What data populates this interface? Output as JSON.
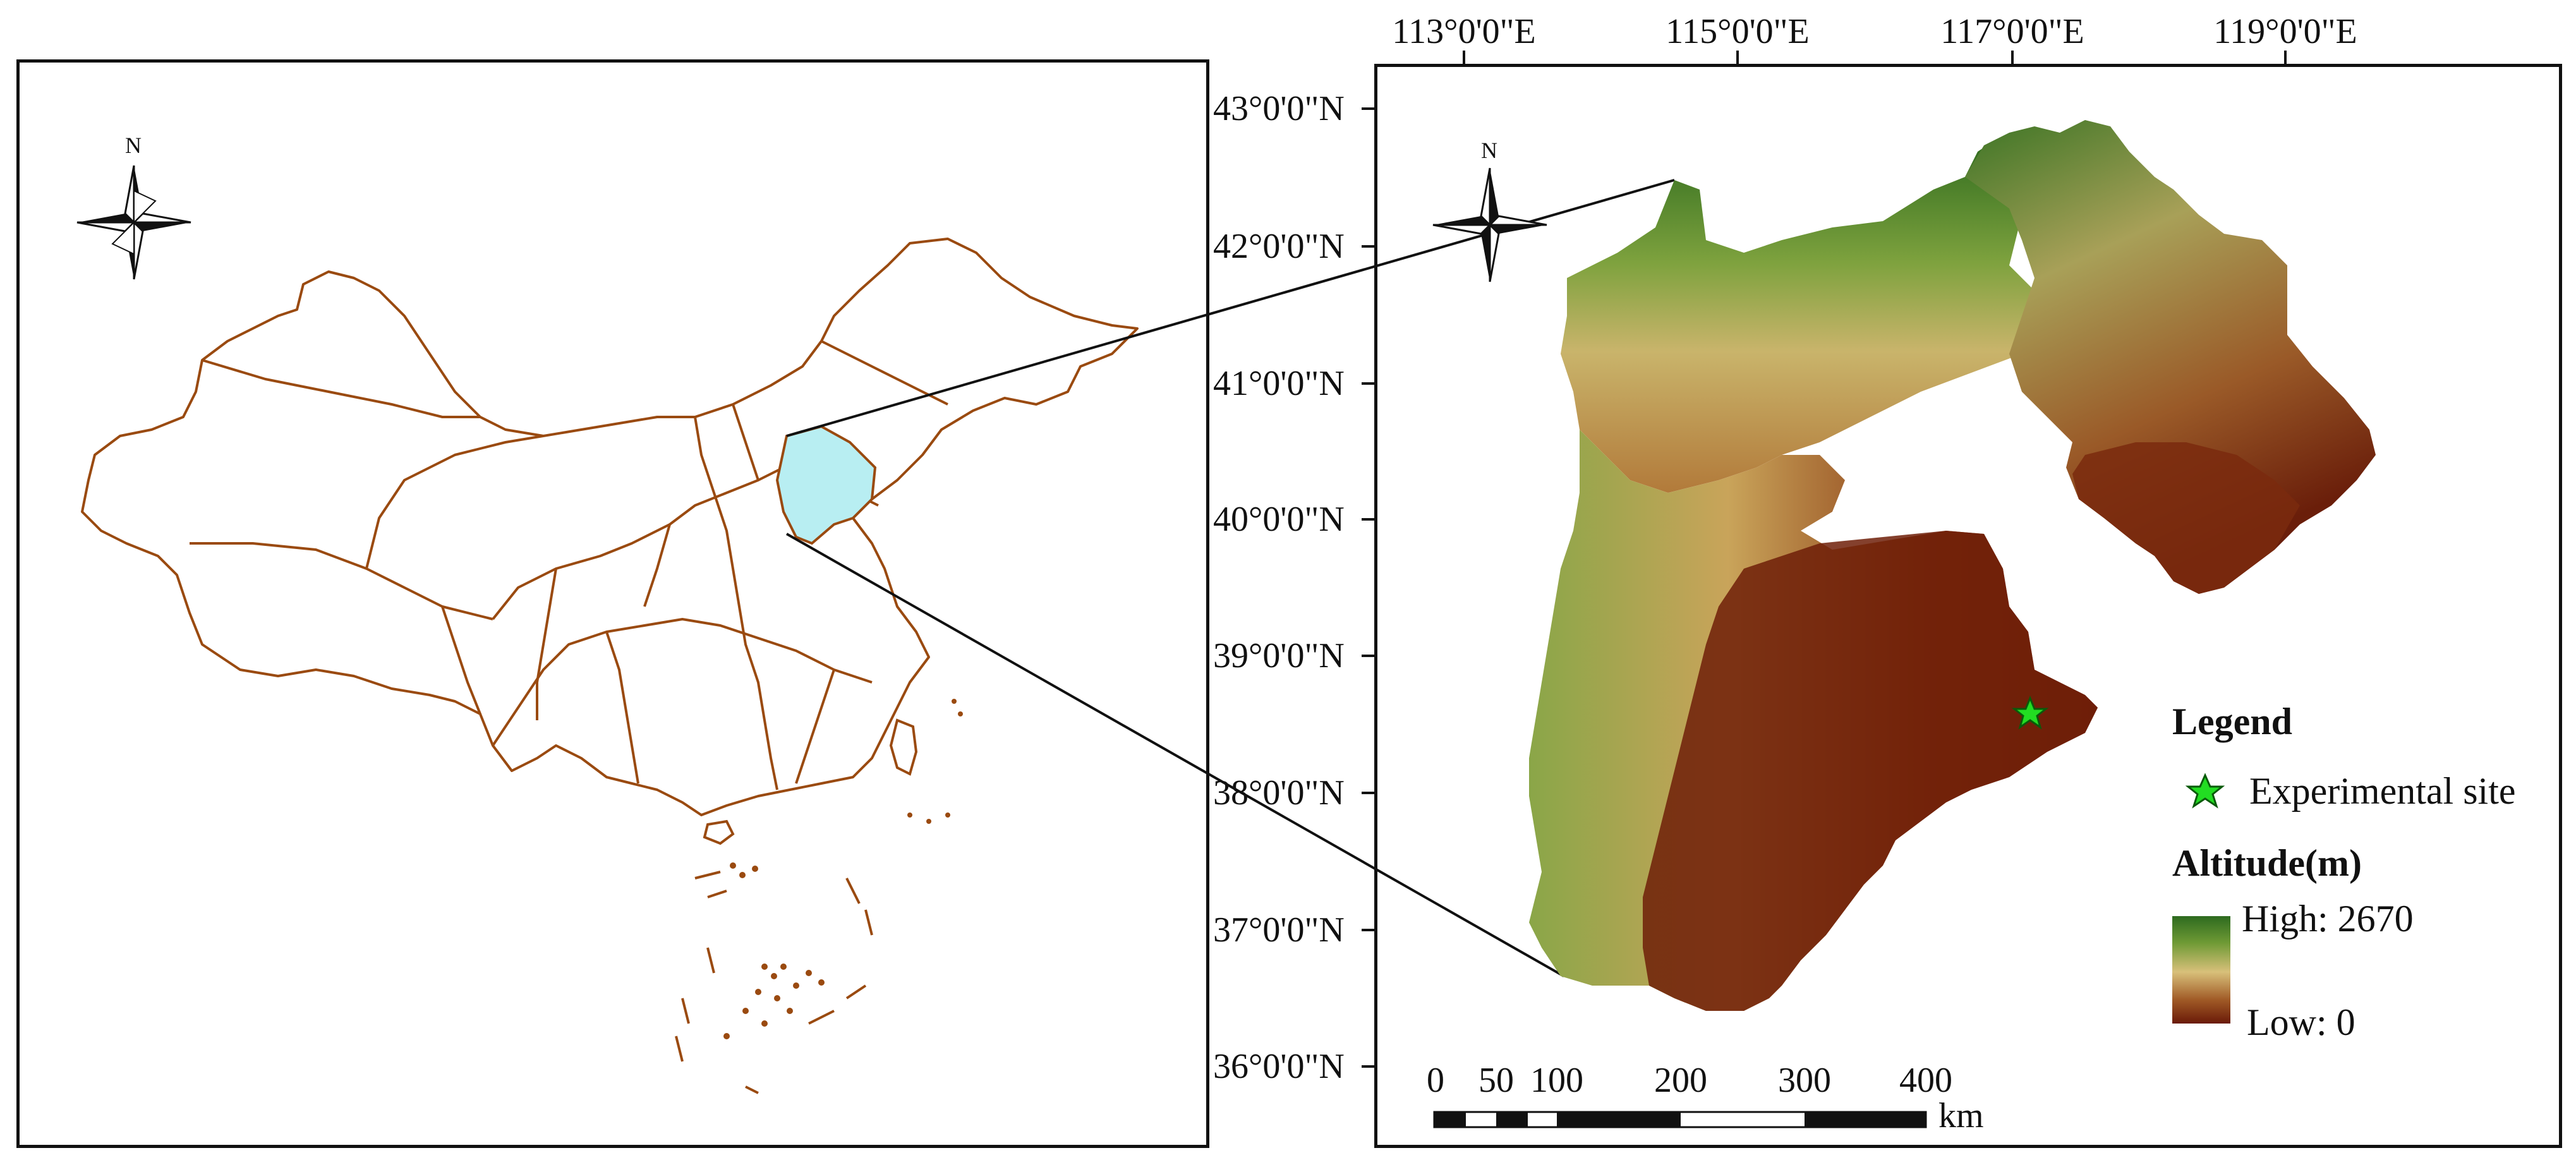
{
  "north_arrow": {
    "label": "N"
  },
  "longitude_labels": [
    "113°0'0\"E",
    "115°0'0\"E",
    "117°0'0\"E",
    "119°0'0\"E"
  ],
  "latitude_labels": [
    "43°0'0\"N",
    "42°0'0\"N",
    "41°0'0\"N",
    "40°0'0\"N",
    "39°0'0\"N",
    "38°0'0\"N",
    "37°0'0\"N",
    "36°0'0\"N"
  ],
  "legend": {
    "title": "Legend",
    "site_label": "Experimental site",
    "altitude_title": "Altitude(m)",
    "high_label": "High: 2670",
    "low_label": "Low: 0",
    "site_color": "#22dd22"
  },
  "scale_bar": {
    "ticks": [
      "0",
      "50",
      "100",
      "200",
      "300",
      "400"
    ],
    "unit": "km"
  },
  "colors": {
    "province_border": "#9a4a10",
    "highlight_region": "#b8eef2",
    "terrain_high": "#2d6a1f",
    "terrain_mid": "#d8c07a",
    "terrain_low": "#6a1a08"
  }
}
